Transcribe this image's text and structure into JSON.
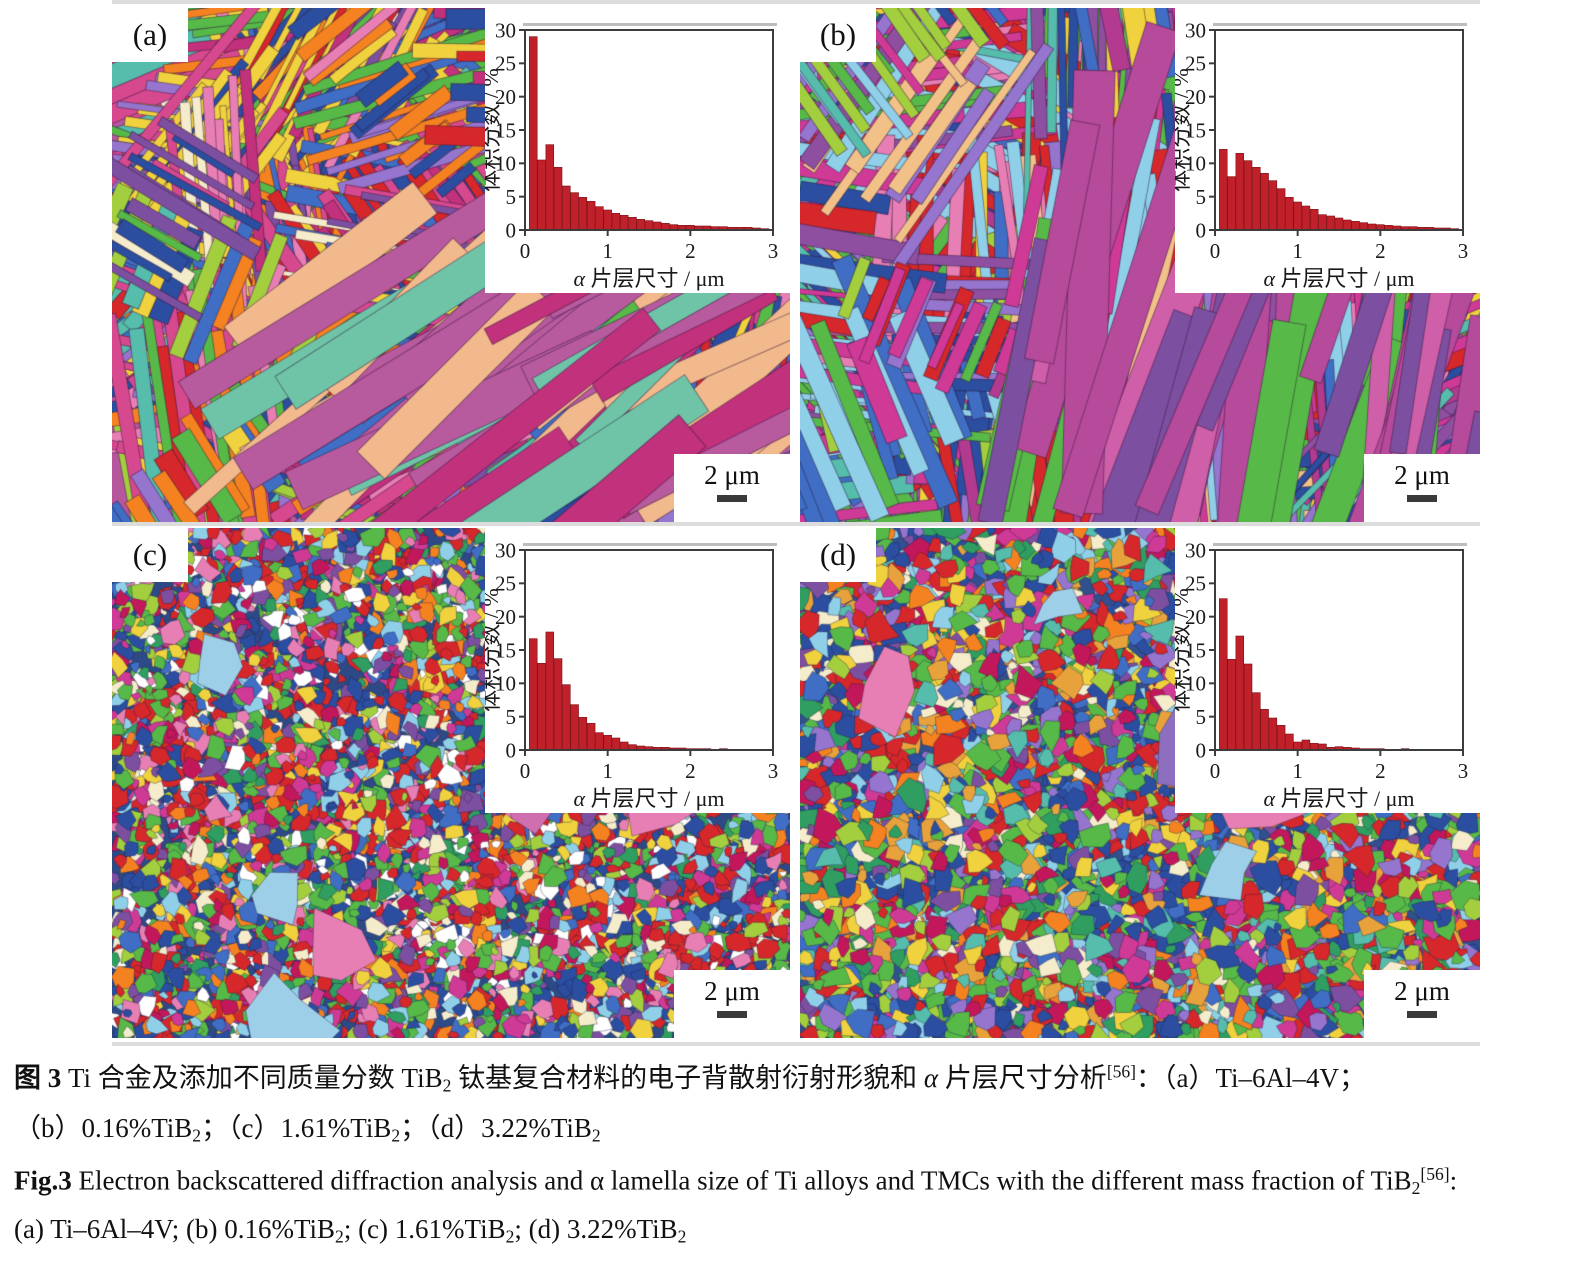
{
  "panels": [
    {
      "id": "a",
      "label": "(a)",
      "scale_label": "2 μm",
      "map_style": "lamellae",
      "seed": 11,
      "bg": "#b6569d",
      "palette": [
        "#57b947",
        "#57b947",
        "#a3cf3e",
        "#f58220",
        "#f58220",
        "#2b4ea0",
        "#2b4ea0",
        "#d6498f",
        "#d6498f",
        "#c2317c",
        "#56bcab",
        "#f0d23e",
        "#f0d23e",
        "#7d4fa0",
        "#f4ecca",
        "#d6272b",
        "#3f6ec4",
        "#9575cd",
        "#e87fb4"
      ],
      "accent": {
        "colors": [
          "#b85a9e",
          "#b85a9e",
          "#6fc4a8",
          "#c2317c",
          "#f2b98c"
        ],
        "angle": -0.6
      }
    },
    {
      "id": "b",
      "label": "(b)",
      "scale_label": "2 μm",
      "map_style": "lamellae",
      "seed": 29,
      "vertical": true,
      "bg": "#a94f96",
      "palette": [
        "#8e4fa0",
        "#8e4fa0",
        "#b23b8f",
        "#cf3a96",
        "#cf3a96",
        "#57b947",
        "#57b947",
        "#a3cf3e",
        "#d6272b",
        "#d6272b",
        "#2b4ea0",
        "#2b4ea0",
        "#f0d23e",
        "#56bcab",
        "#8fd0e8",
        "#e87fb4",
        "#f2c188",
        "#9575cd",
        "#3f6ec4"
      ],
      "accent": {
        "colors": [
          "#b64a9b",
          "#b64a9b",
          "#57b947",
          "#cf5fa8",
          "#7d4fa0"
        ],
        "angle": -1.35
      }
    },
    {
      "id": "c",
      "label": "(c)",
      "scale_label": "2 μm",
      "map_style": "grains",
      "seed": 47,
      "bg": "#2e4a86",
      "rmin": 4,
      "rmax": 12,
      "count": 6200,
      "palette": [
        "#d6272b",
        "#d6272b",
        "#d6272b",
        "#2b4ea0",
        "#2b4ea0",
        "#57b947",
        "#57b947",
        "#f58220",
        "#7d4fa0",
        "#cf3a96",
        "#a3cf3e",
        "#f0d23e",
        "#8fd0e8",
        "#3f6ec4",
        "#f4ecca",
        "#ffffff",
        "#c2185b",
        "#2f9e60",
        "#e87fb4"
      ],
      "blobs": [
        "#b98fd4",
        "#e87fb4",
        "#9ecfe8",
        "#cf6fb0"
      ]
    },
    {
      "id": "d",
      "label": "(d)",
      "scale_label": "2 μm",
      "map_style": "grains",
      "seed": 73,
      "bg": "#32508e",
      "rmin": 5,
      "rmax": 15,
      "count": 5200,
      "palette": [
        "#d6272b",
        "#d6272b",
        "#57b947",
        "#57b947",
        "#a3cf3e",
        "#2b4ea0",
        "#2b4ea0",
        "#3f6ec4",
        "#f0d23e",
        "#f58220",
        "#7d4fa0",
        "#9575cd",
        "#cf3a96",
        "#c2185b",
        "#56bcab",
        "#8fd0e8",
        "#f4ecca",
        "#2f9e60",
        "#e8a23c"
      ],
      "blobs": [
        "#8e6fbf",
        "#e87fb4",
        "#9ecfe8",
        "#e0d23e"
      ]
    }
  ],
  "chart_data": [
    {
      "type": "bar",
      "panel": "a",
      "ylabel": "体积分数 / %",
      "xlabel": "α 片层尺寸 / μm",
      "xlabel_italic": "α",
      "xlabel_rest": " 片层尺寸 / μm",
      "xlim": [
        0,
        3
      ],
      "ylim": [
        0,
        30
      ],
      "yticks": [
        0,
        5,
        10,
        15,
        20,
        25,
        30
      ],
      "xticks": [
        0,
        1,
        2,
        3
      ],
      "bin_start": 0.1,
      "bin_width": 0.1,
      "values": [
        29,
        10.5,
        12.8,
        9.4,
        6.6,
        5.6,
        4.9,
        4.3,
        3.5,
        3.0,
        2.5,
        2.2,
        1.9,
        1.6,
        1.4,
        1.2,
        1.0,
        0.8,
        0.7,
        0.7,
        0.6,
        0.6,
        0.5,
        0.5,
        0.4,
        0.4,
        0.4,
        0.3,
        0.2
      ],
      "bar_color": "#c0202a",
      "bar_edge": "#7c1016"
    },
    {
      "type": "bar",
      "panel": "b",
      "ylabel": "体积分数 / %",
      "xlabel": "α 片层尺寸 / μm",
      "xlabel_italic": "α",
      "xlabel_rest": " 片层尺寸 / μm",
      "xlim": [
        0,
        3
      ],
      "ylim": [
        0,
        30
      ],
      "yticks": [
        0,
        5,
        10,
        15,
        20,
        25,
        30
      ],
      "xticks": [
        0,
        1,
        2,
        3
      ],
      "bin_start": 0.1,
      "bin_width": 0.1,
      "values": [
        12.1,
        8.0,
        11.5,
        10.4,
        9.4,
        8.5,
        7.4,
        6.2,
        4.9,
        4.2,
        3.6,
        3.1,
        2.3,
        2.1,
        1.8,
        1.5,
        1.3,
        1.1,
        0.9,
        0.8,
        0.7,
        0.6,
        0.5,
        0.5,
        0.4,
        0.4,
        0.3,
        0.3,
        0.2
      ],
      "bar_color": "#c0202a",
      "bar_edge": "#7c1016"
    },
    {
      "type": "bar",
      "panel": "c",
      "ylabel": "体积分数 / %",
      "xlabel": "α 片层尺寸 / μm",
      "xlabel_italic": "α",
      "xlabel_rest": " 片层尺寸 / μm",
      "xlim": [
        0,
        3
      ],
      "ylim": [
        0,
        30
      ],
      "yticks": [
        0,
        5,
        10,
        15,
        20,
        25,
        30
      ],
      "xticks": [
        0,
        1,
        2,
        3
      ],
      "bin_start": 0.1,
      "bin_width": 0.1,
      "values": [
        16.7,
        13.0,
        17.7,
        13.7,
        9.8,
        6.8,
        4.9,
        4.0,
        2.6,
        2.2,
        1.8,
        1.2,
        0.8,
        0.6,
        0.5,
        0.4,
        0.4,
        0.3,
        0.3,
        0.2,
        0.2,
        0.2,
        0.1,
        0.2,
        0.1,
        0.1,
        0.1,
        0.1,
        0.1
      ],
      "bar_color": "#c0202a",
      "bar_edge": "#7c1016"
    },
    {
      "type": "bar",
      "panel": "d",
      "ylabel": "体积分数 / %",
      "xlabel": "α 片层尺寸 / μm",
      "xlabel_italic": "α",
      "xlabel_rest": " 片层尺寸 / μm",
      "xlim": [
        0,
        3
      ],
      "ylim": [
        0,
        30
      ],
      "yticks": [
        0,
        5,
        10,
        15,
        20,
        25,
        30
      ],
      "xticks": [
        0,
        1,
        2,
        3
      ],
      "bin_start": 0.1,
      "bin_width": 0.1,
      "values": [
        22.7,
        13.6,
        17.1,
        12.9,
        8.6,
        6.1,
        4.8,
        3.7,
        2.4,
        1.2,
        1.5,
        1.0,
        0.9,
        0.4,
        0.5,
        0.4,
        0.3,
        0.2,
        0.2,
        0.2,
        0.1,
        0.1,
        0.2,
        0.1,
        0.1,
        0.1,
        0.1,
        0.1,
        0.1
      ],
      "bar_color": "#c0202a",
      "bar_edge": "#7c1016"
    }
  ],
  "caption": {
    "zh_line1": [
      {
        "t": "图 3",
        "b": true
      },
      {
        "t": "  Ti 合金及添加不同质量分数 TiB"
      },
      {
        "t": "2",
        "sub": true
      },
      {
        "t": " 钛基复合材料的电子背散射衍射形貌和 "
      },
      {
        "t": "α",
        "i": true
      },
      {
        "t": " 片层尺寸分析"
      },
      {
        "t": "[56]",
        "sup": true
      },
      {
        "t": "：（a）Ti–6Al–4V；"
      }
    ],
    "zh_line2": [
      {
        "t": "（b）0.16%TiB"
      },
      {
        "t": "2",
        "sub": true
      },
      {
        "t": "；（c）1.61%TiB"
      },
      {
        "t": "2",
        "sub": true
      },
      {
        "t": "；（d）3.22%TiB"
      },
      {
        "t": "2",
        "sub": true
      }
    ],
    "en_line1": [
      {
        "t": "Fig.3",
        "b": true
      },
      {
        "t": "  Electron backscattered diffraction analysis and α lamella size of Ti alloys and TMCs with the different mass fraction of TiB"
      },
      {
        "t": "2",
        "sub": true
      },
      {
        "t": "[56]",
        "sup": true
      },
      {
        "t": ":"
      }
    ],
    "en_line2": [
      {
        "t": "(a) Ti–6Al–4V; (b) 0.16%TiB"
      },
      {
        "t": "2",
        "sub": true
      },
      {
        "t": "; (c) 1.61%TiB"
      },
      {
        "t": "2",
        "sub": true
      },
      {
        "t": "; (d) 3.22%TiB"
      },
      {
        "t": "2",
        "sub": true
      }
    ]
  }
}
